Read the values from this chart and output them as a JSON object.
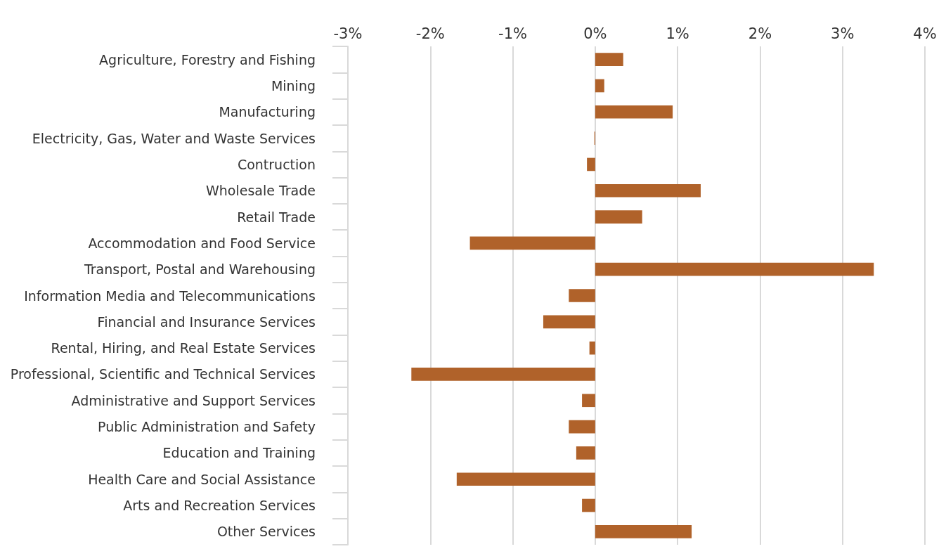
{
  "chart_data": {
    "type": "bar",
    "orientation": "horizontal",
    "categories": [
      "Agriculture, Forestry and Fishing",
      "Mining",
      "Manufacturing",
      "Electricity, Gas, Water and Waste Services",
      "Contruction",
      "Wholesale Trade",
      "Retail Trade",
      "Accommodation and Food Service",
      "Transport, Postal and Warehousing",
      "Information Media and Telecommunications",
      "Financial and Insurance Services",
      "Rental, Hiring, and Real Estate Services",
      "Professional, Scientific and Technical Services",
      "Administrative and Support Services",
      "Public Administration and Safety",
      "Education and Training",
      "Health Care and Social Assistance",
      "Arts and Recreation Services",
      "Other Services"
    ],
    "values": [
      0.34,
      0.11,
      0.94,
      -0.01,
      -0.1,
      1.28,
      0.57,
      -1.52,
      3.38,
      -0.32,
      -0.63,
      -0.07,
      -2.23,
      -0.16,
      -0.32,
      -0.23,
      -1.68,
      -0.16,
      1.17
    ],
    "color": "#b0622a",
    "xlim": [
      -3,
      4
    ],
    "xticks": [
      {
        "value": -3,
        "label": "-3%"
      },
      {
        "value": -2,
        "label": "-2%"
      },
      {
        "value": -1,
        "label": "-1%"
      },
      {
        "value": 0,
        "label": "0%"
      },
      {
        "value": 1,
        "label": "1%"
      },
      {
        "value": 2,
        "label": "2%"
      },
      {
        "value": 3,
        "label": "3%"
      },
      {
        "value": 4,
        "label": "4%"
      }
    ],
    "grid": "x"
  }
}
